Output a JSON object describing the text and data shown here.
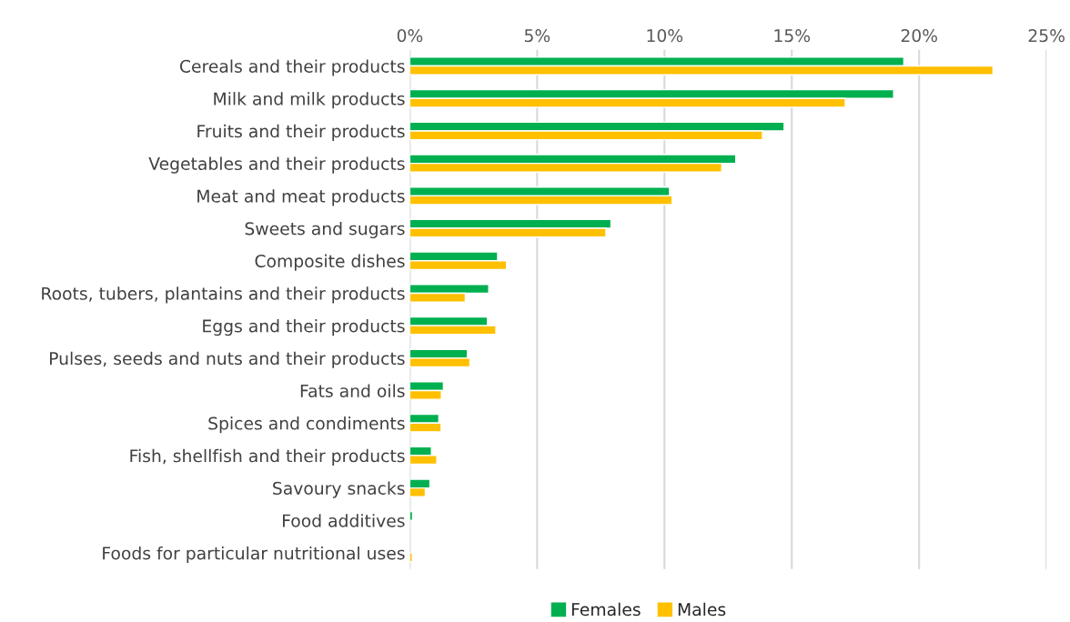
{
  "chart_data": {
    "type": "bar",
    "orientation": "horizontal",
    "categories": [
      "Cereals and their products",
      "Milk and milk products",
      "Fruits and their products",
      "Vegetables and their products",
      "Meat and meat products",
      "Sweets and sugars",
      "Composite dishes",
      "Roots, tubers, plantains and their products",
      "Eggs and their products",
      "Pulses, seeds and nuts and their products",
      "Fats and oils",
      "Spices and condiments",
      "Fish, shellfish and their products",
      "Savoury snacks",
      "Food additives",
      "Foods for particular nutritional uses"
    ],
    "series": [
      {
        "name": "Females",
        "color": "#00b050",
        "values": [
          19.4,
          19.0,
          14.7,
          12.8,
          10.2,
          7.9,
          3.45,
          3.1,
          3.05,
          2.26,
          1.32,
          1.14,
          0.85,
          0.79,
          0.11,
          null
        ]
      },
      {
        "name": "Males",
        "color": "#ffc000",
        "values": [
          22.9,
          17.1,
          13.85,
          12.25,
          10.3,
          7.7,
          3.8,
          2.18,
          3.38,
          2.36,
          1.24,
          1.23,
          1.06,
          0.61,
          null,
          0.1
        ]
      }
    ],
    "xlim": [
      0,
      25
    ],
    "xticks": [
      {
        "value": 0,
        "label": "0%"
      },
      {
        "value": 5,
        "label": "5%"
      },
      {
        "value": 10,
        "label": "10%"
      },
      {
        "value": 15,
        "label": "15%"
      },
      {
        "value": 20,
        "label": "20%"
      },
      {
        "value": 25,
        "label": "25%"
      }
    ],
    "grid": "x",
    "legend": "bottom"
  }
}
